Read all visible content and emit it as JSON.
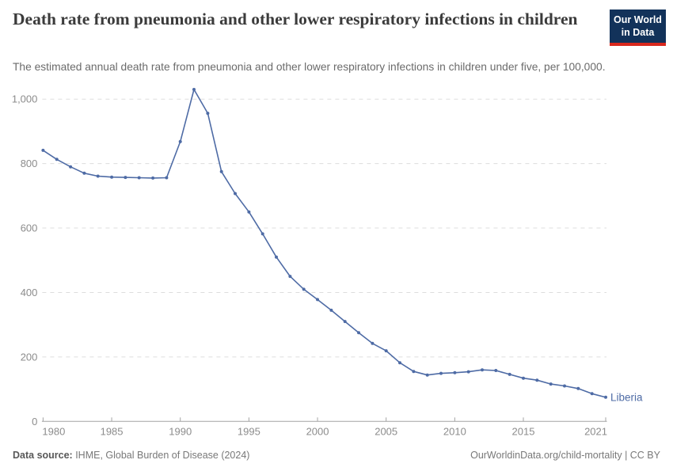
{
  "header": {
    "title": "Death rate from pneumonia and other lower respiratory infections in children",
    "subtitle": "The estimated annual death rate from pneumonia and other lower respiratory infections in children under five, per 100,000.",
    "logo": {
      "line1": "Our World",
      "line2": "in Data",
      "bg_color": "#12325a",
      "bar_color": "#d8271d"
    }
  },
  "chart_data": {
    "type": "line",
    "title": "Death rate from pneumonia and other lower respiratory infections in children",
    "xlabel": "",
    "ylabel": "",
    "xlim": [
      1980,
      2021
    ],
    "ylim": [
      0,
      1030
    ],
    "grid": "horizontal-dashed",
    "legend_position": "end-of-line-label",
    "xticks": [
      1980,
      1985,
      1990,
      1995,
      2000,
      2005,
      2010,
      2015,
      2021
    ],
    "xtick_labels": [
      "1980",
      "1985",
      "1990",
      "1995",
      "2000",
      "2005",
      "2010",
      "2015",
      "2021"
    ],
    "yticks": [
      0,
      200,
      400,
      600,
      800,
      1000
    ],
    "ytick_labels": [
      "0",
      "200",
      "400",
      "600",
      "800",
      "1,000"
    ],
    "x": [
      1980,
      1981,
      1982,
      1983,
      1984,
      1985,
      1986,
      1987,
      1988,
      1989,
      1990,
      1991,
      1992,
      1993,
      1994,
      1995,
      1996,
      1997,
      1998,
      1999,
      2000,
      2001,
      2002,
      2003,
      2004,
      2005,
      2006,
      2007,
      2008,
      2009,
      2010,
      2011,
      2012,
      2013,
      2014,
      2015,
      2016,
      2017,
      2018,
      2019,
      2020,
      2021
    ],
    "series": [
      {
        "name": "Liberia",
        "color": "#4e6ba5",
        "values": [
          841,
          813,
          790,
          770,
          761,
          758,
          757,
          756,
          755,
          756,
          868,
          1030,
          956,
          775,
          707,
          650,
          582,
          510,
          450,
          410,
          378,
          345,
          310,
          275,
          242,
          219,
          182,
          155,
          144,
          149,
          151,
          154,
          160,
          158,
          146,
          134,
          128,
          116,
          110,
          102,
          86,
          75
        ]
      }
    ]
  },
  "footer": {
    "source_prefix": "Data source:",
    "source_text": " IHME, Global Burden of Disease (2024)",
    "right_text": "OurWorldinData.org/child-mortality | CC BY"
  },
  "colors": {
    "line": "#4e6ba5",
    "gridline": "#dddddd",
    "axis": "#a3a3a3",
    "tick_label": "#8c8c8c",
    "title": "#3b3b3b",
    "subtitle": "#6b6b6b"
  }
}
